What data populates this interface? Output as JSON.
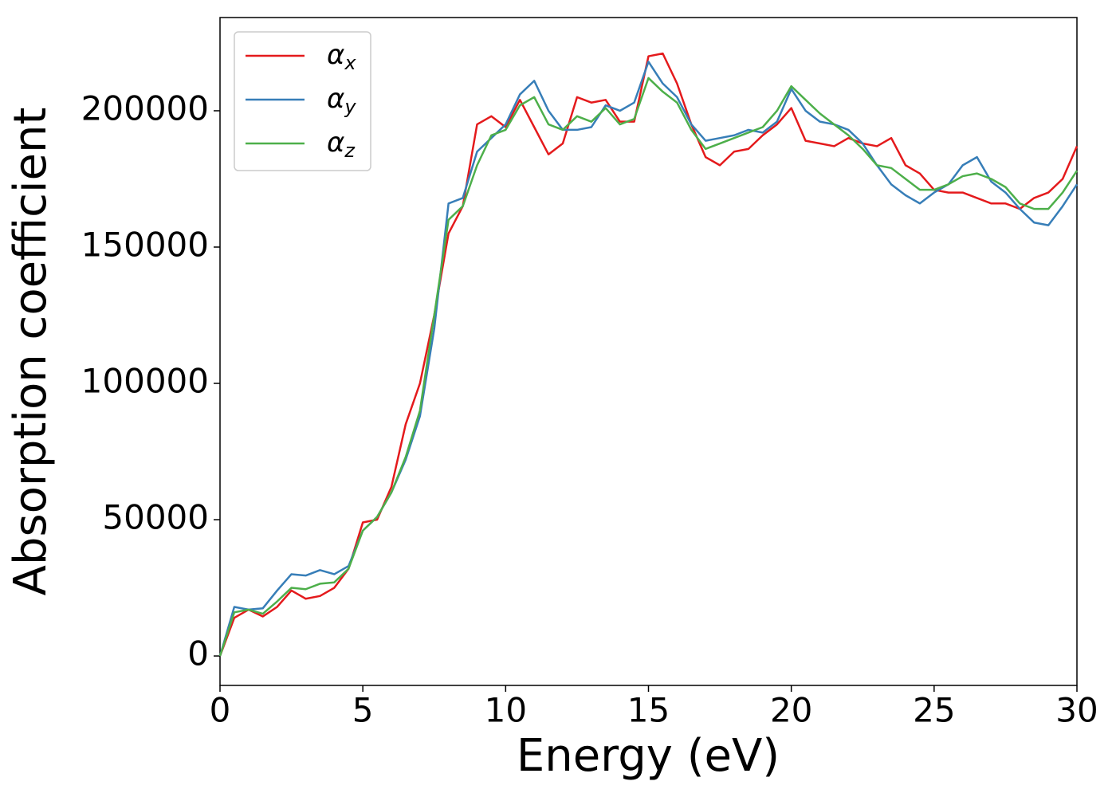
{
  "chart_data": {
    "type": "line",
    "xlabel": "Energy (eV)",
    "ylabel": "Absorption coefficient",
    "x": [
      0,
      0.5,
      1,
      1.5,
      2,
      2.5,
      3,
      3.5,
      4,
      4.5,
      5,
      5.5,
      6,
      6.5,
      7,
      7.5,
      8,
      8.5,
      9,
      9.5,
      10,
      10.5,
      11,
      11.5,
      12,
      12.5,
      13,
      13.5,
      14,
      14.5,
      15,
      15.5,
      16,
      16.5,
      17,
      17.5,
      18,
      18.5,
      19,
      19.5,
      20,
      20.5,
      21,
      21.5,
      22,
      22.5,
      23,
      23.5,
      24,
      24.5,
      25,
      25.5,
      26,
      26.5,
      27,
      27.5,
      28,
      28.5,
      29,
      29.5,
      30
    ],
    "series": [
      {
        "name": "α_x",
        "color": "#e41a1c",
        "values": [
          0,
          14000,
          17000,
          14500,
          18000,
          24000,
          21000,
          22000,
          25000,
          32000,
          49000,
          50000,
          62000,
          85000,
          100000,
          125000,
          155000,
          165000,
          195000,
          198000,
          194000,
          204000,
          194000,
          184000,
          188000,
          205000,
          203000,
          204000,
          196000,
          196000,
          220000,
          221000,
          210000,
          195000,
          183000,
          180000,
          185000,
          186000,
          191000,
          195000,
          201000,
          189000,
          188000,
          187000,
          190000,
          188000,
          187000,
          190000,
          180000,
          177000,
          171000,
          170000,
          170000,
          168000,
          166000,
          166000,
          164000,
          168000,
          170000,
          175000,
          187000
        ]
      },
      {
        "name": "α_y",
        "color": "#377eb8",
        "values": [
          0,
          18000,
          17000,
          17500,
          24000,
          30000,
          29500,
          31500,
          30000,
          33000,
          46000,
          51000,
          60000,
          72000,
          88000,
          120000,
          166000,
          168000,
          185000,
          190000,
          195000,
          206000,
          211000,
          200000,
          193000,
          193000,
          194000,
          202000,
          200000,
          203000,
          218000,
          210000,
          205000,
          195000,
          189000,
          190000,
          191000,
          193000,
          192000,
          196000,
          208000,
          200000,
          196000,
          195000,
          193000,
          188000,
          180000,
          173000,
          169000,
          166000,
          170000,
          173000,
          180000,
          183000,
          174000,
          170000,
          164000,
          159000,
          158000,
          165000,
          173000
        ]
      },
      {
        "name": "α_z",
        "color": "#4daf4a",
        "values": [
          0,
          16000,
          17000,
          15500,
          20000,
          25000,
          24500,
          26500,
          27000,
          32000,
          46000,
          51000,
          60000,
          73000,
          90000,
          125000,
          160000,
          165000,
          180000,
          191000,
          193000,
          202000,
          205000,
          195000,
          193000,
          198000,
          196000,
          201000,
          195000,
          197000,
          212000,
          207000,
          203000,
          193000,
          186000,
          188000,
          190000,
          192000,
          194000,
          200000,
          209000,
          204000,
          199000,
          195000,
          191000,
          186000,
          180000,
          179000,
          175000,
          171000,
          171000,
          173000,
          176000,
          177000,
          175000,
          172000,
          166000,
          164000,
          164000,
          170000,
          178000
        ]
      }
    ],
    "xlim": [
      0,
      30
    ],
    "xticks": [
      0,
      5,
      10,
      15,
      20,
      25,
      30
    ],
    "ylim": [
      -10800,
      234200
    ],
    "yticks": [
      0,
      50000,
      100000,
      150000,
      200000
    ],
    "grid": false,
    "legend": "upper left"
  }
}
